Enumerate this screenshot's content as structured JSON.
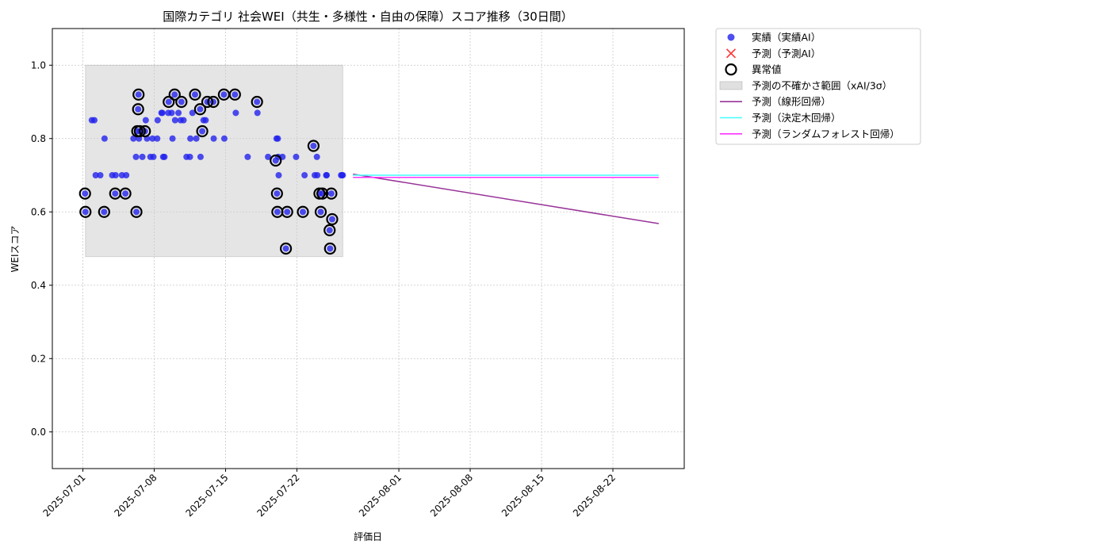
{
  "chart_data": {
    "type": "scatter",
    "title": "国際カテゴリ 社会WEI（共生・多様性・自由の保障）スコア推移（30日間）",
    "xlabel": "評価日",
    "ylabel": "WEIスコア",
    "xlim": [
      "2025-06-28",
      "2025-08-29"
    ],
    "ylim": [
      -0.1,
      1.1
    ],
    "xticks": [
      "2025-07-01",
      "2025-07-08",
      "2025-07-15",
      "2025-07-22",
      "2025-08-01",
      "2025-08-08",
      "2025-08-15",
      "2025-08-22"
    ],
    "yticks": [
      "0.0",
      "0.2",
      "0.4",
      "0.6",
      "0.8",
      "1.0"
    ],
    "grid": true,
    "legend_position": "outside-right-top",
    "colors": {
      "actual": "#2222ee",
      "forecast_ai": "#ff3333",
      "anomaly": "#000000",
      "band": "#cccccc",
      "linear": "#993399",
      "tree": "#44ffff",
      "forest": "#ff33ff"
    },
    "legend": [
      {
        "key": "actual",
        "label": "実績（実績AI）"
      },
      {
        "key": "forecast_ai",
        "label": "予測（予測AI）"
      },
      {
        "key": "anomaly",
        "label": "異常値"
      },
      {
        "key": "band",
        "label": "予測の不確かさ範囲（xAI/3σ）"
      },
      {
        "key": "linear",
        "label": "予測（線形回帰）"
      },
      {
        "key": "tree",
        "label": "予測（決定木回帰）"
      },
      {
        "key": "forest",
        "label": "予測（ランダムフォレスト回帰）"
      }
    ],
    "uncertainty_band": {
      "x": [
        "2025-07-01 06:00",
        "2025-07-26 12:00"
      ],
      "y": [
        0.478,
        1.0
      ]
    },
    "actual_points": [
      [
        "2025-07-01 05:00",
        0.65
      ],
      [
        "2025-07-01 06:00",
        0.6
      ],
      [
        "2025-07-01 21:00",
        0.85
      ],
      [
        "2025-07-02 03:00",
        0.85
      ],
      [
        "2025-07-02 06:00",
        0.7
      ],
      [
        "2025-07-02 17:00",
        0.7
      ],
      [
        "2025-07-03 02:00",
        0.6
      ],
      [
        "2025-07-03 03:00",
        0.8
      ],
      [
        "2025-07-03 21:00",
        0.7
      ],
      [
        "2025-07-04 04:00",
        0.65
      ],
      [
        "2025-07-04 05:00",
        0.7
      ],
      [
        "2025-07-04 20:00",
        0.7
      ],
      [
        "2025-07-05 04:00",
        0.65
      ],
      [
        "2025-07-05 06:00",
        0.7
      ],
      [
        "2025-07-05 23:00",
        0.8
      ],
      [
        "2025-07-06 05:00",
        0.75
      ],
      [
        "2025-07-06 06:00",
        0.6
      ],
      [
        "2025-07-06 08:00",
        0.82
      ],
      [
        "2025-07-06 10:00",
        0.88
      ],
      [
        "2025-07-06 11:00",
        0.92
      ],
      [
        "2025-07-06 12:00",
        0.8
      ],
      [
        "2025-07-06 14:00",
        0.82
      ],
      [
        "2025-07-06 20:00",
        0.75
      ],
      [
        "2025-07-07 02:00",
        0.82
      ],
      [
        "2025-07-07 04:00",
        0.85
      ],
      [
        "2025-07-07 07:00",
        0.8
      ],
      [
        "2025-07-07 15:00",
        0.75
      ],
      [
        "2025-07-07 20:00",
        0.8
      ],
      [
        "2025-07-07 22:00",
        0.75
      ],
      [
        "2025-07-08 07:00",
        0.8
      ],
      [
        "2025-07-08 08:00",
        0.85
      ],
      [
        "2025-07-08 17:00",
        0.87
      ],
      [
        "2025-07-08 19:00",
        0.87
      ],
      [
        "2025-07-08 21:00",
        0.75
      ],
      [
        "2025-07-09 00:00",
        0.75
      ],
      [
        "2025-07-09 09:00",
        0.87
      ],
      [
        "2025-07-09 10:00",
        0.9
      ],
      [
        "2025-07-09 17:00",
        0.87
      ],
      [
        "2025-07-09 19:00",
        0.8
      ],
      [
        "2025-07-10 00:00",
        0.92
      ],
      [
        "2025-07-10 01:00",
        0.85
      ],
      [
        "2025-07-10 09:00",
        0.87
      ],
      [
        "2025-07-10 14:00",
        0.85
      ],
      [
        "2025-07-10 16:00",
        0.9
      ],
      [
        "2025-07-10 21:00",
        0.85
      ],
      [
        "2025-07-11 04:00",
        0.75
      ],
      [
        "2025-07-11 12:00",
        0.75
      ],
      [
        "2025-07-11 13:00",
        0.8
      ],
      [
        "2025-07-11 18:00",
        0.87
      ],
      [
        "2025-07-12 00:00",
        0.92
      ],
      [
        "2025-07-12 03:00",
        0.8
      ],
      [
        "2025-07-12 12:00",
        0.88
      ],
      [
        "2025-07-12 13:00",
        0.75
      ],
      [
        "2025-07-12 17:00",
        0.82
      ],
      [
        "2025-07-12 20:00",
        0.85
      ],
      [
        "2025-07-13 01:00",
        0.85
      ],
      [
        "2025-07-13 05:00",
        0.9
      ],
      [
        "2025-07-13 19:00",
        0.9
      ],
      [
        "2025-07-13 20:00",
        0.8
      ],
      [
        "2025-07-14 20:00",
        0.92
      ],
      [
        "2025-07-14 21:00",
        0.8
      ],
      [
        "2025-07-15 22:00",
        0.92
      ],
      [
        "2025-07-16 00:00",
        0.87
      ],
      [
        "2025-07-17 04:00",
        0.75
      ],
      [
        "2025-07-18 02:00",
        0.9
      ],
      [
        "2025-07-18 03:00",
        0.87
      ],
      [
        "2025-07-19 04:00",
        0.75
      ],
      [
        "2025-07-19 22:00",
        0.74
      ],
      [
        "2025-07-20 00:00",
        0.8
      ],
      [
        "2025-07-20 01:00",
        0.65
      ],
      [
        "2025-07-20 02:00",
        0.6
      ],
      [
        "2025-07-20 03:00",
        0.8
      ],
      [
        "2025-07-20 04:00",
        0.75
      ],
      [
        "2025-07-20 05:00",
        0.7
      ],
      [
        "2025-07-20 14:00",
        0.75
      ],
      [
        "2025-07-20 22:00",
        0.5
      ],
      [
        "2025-07-21 01:00",
        0.6
      ],
      [
        "2025-07-21 22:00",
        0.75
      ],
      [
        "2025-07-22 14:00",
        0.6
      ],
      [
        "2025-07-22 18:00",
        0.7
      ],
      [
        "2025-07-23 15:00",
        0.78
      ],
      [
        "2025-07-23 18:00",
        0.7
      ],
      [
        "2025-07-23 23:00",
        0.75
      ],
      [
        "2025-07-24 00:00",
        0.7
      ],
      [
        "2025-07-24 05:00",
        0.65
      ],
      [
        "2025-07-24 08:00",
        0.6
      ],
      [
        "2025-07-24 12:00",
        0.65
      ],
      [
        "2025-07-24 21:00",
        0.7
      ],
      [
        "2025-07-24 22:00",
        0.7
      ],
      [
        "2025-07-25 05:00",
        0.55
      ],
      [
        "2025-07-25 06:00",
        0.5
      ],
      [
        "2025-07-25 09:00",
        0.65
      ],
      [
        "2025-07-25 11:00",
        0.58
      ],
      [
        "2025-07-26 08:00",
        0.7
      ],
      [
        "2025-07-26 10:00",
        0.7
      ],
      [
        "2025-07-26 12:00",
        0.7
      ]
    ],
    "anomaly_points": [
      [
        "2025-07-01 05:00",
        0.65
      ],
      [
        "2025-07-01 06:00",
        0.6
      ],
      [
        "2025-07-03 02:00",
        0.6
      ],
      [
        "2025-07-04 04:00",
        0.65
      ],
      [
        "2025-07-05 04:00",
        0.65
      ],
      [
        "2025-07-06 06:00",
        0.6
      ],
      [
        "2025-07-06 08:00",
        0.82
      ],
      [
        "2025-07-06 10:00",
        0.88
      ],
      [
        "2025-07-06 11:00",
        0.92
      ],
      [
        "2025-07-06 14:00",
        0.82
      ],
      [
        "2025-07-07 02:00",
        0.82
      ],
      [
        "2025-07-09 10:00",
        0.9
      ],
      [
        "2025-07-10 00:00",
        0.92
      ],
      [
        "2025-07-10 16:00",
        0.9
      ],
      [
        "2025-07-12 00:00",
        0.92
      ],
      [
        "2025-07-12 12:00",
        0.88
      ],
      [
        "2025-07-12 17:00",
        0.82
      ],
      [
        "2025-07-13 05:00",
        0.9
      ],
      [
        "2025-07-13 19:00",
        0.9
      ],
      [
        "2025-07-14 20:00",
        0.92
      ],
      [
        "2025-07-15 22:00",
        0.92
      ],
      [
        "2025-07-18 02:00",
        0.9
      ],
      [
        "2025-07-19 22:00",
        0.74
      ],
      [
        "2025-07-20 01:00",
        0.65
      ],
      [
        "2025-07-20 02:00",
        0.6
      ],
      [
        "2025-07-20 22:00",
        0.5
      ],
      [
        "2025-07-21 01:00",
        0.6
      ],
      [
        "2025-07-22 14:00",
        0.6
      ],
      [
        "2025-07-23 15:00",
        0.78
      ],
      [
        "2025-07-24 05:00",
        0.65
      ],
      [
        "2025-07-24 08:00",
        0.6
      ],
      [
        "2025-07-24 12:00",
        0.65
      ],
      [
        "2025-07-25 05:00",
        0.55
      ],
      [
        "2025-07-25 06:00",
        0.5
      ],
      [
        "2025-07-25 09:00",
        0.65
      ],
      [
        "2025-07-25 11:00",
        0.58
      ]
    ],
    "forecast_lines": [
      {
        "key": "linear",
        "x": [
          "2025-07-27 12:00",
          "2025-08-26 12:00"
        ],
        "y": [
          0.703,
          0.568
        ]
      },
      {
        "key": "tree",
        "x": [
          "2025-07-27 12:00",
          "2025-08-26 12:00"
        ],
        "y": [
          0.7,
          0.7
        ]
      },
      {
        "key": "forest",
        "x": [
          "2025-07-27 12:00",
          "2025-08-26 12:00"
        ],
        "y": [
          0.694,
          0.694
        ]
      }
    ]
  }
}
